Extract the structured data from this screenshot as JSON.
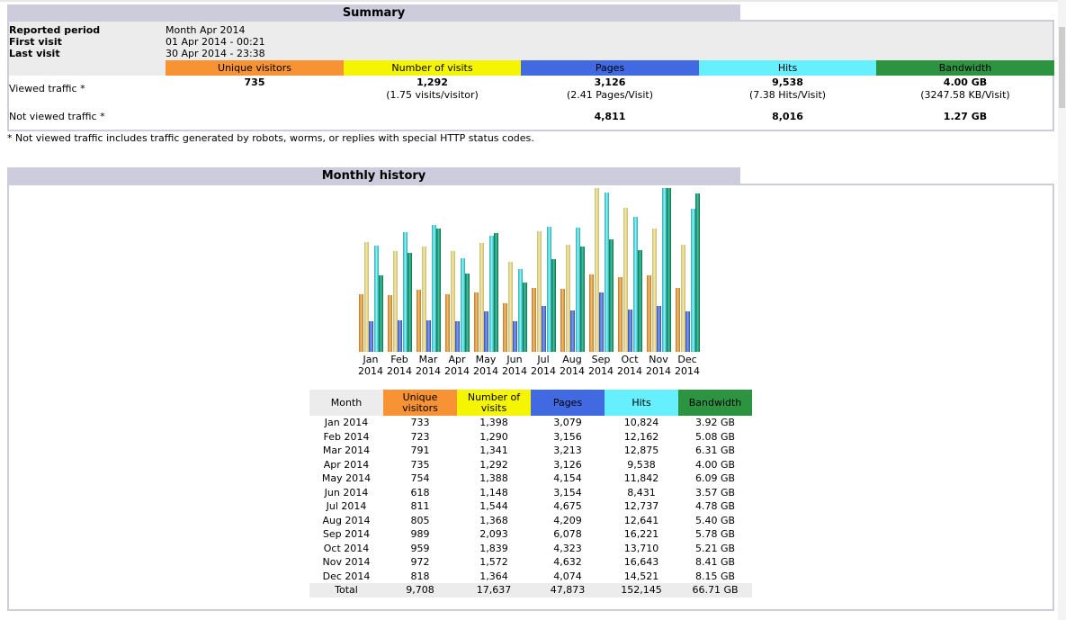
{
  "summary": {
    "title": "Summary",
    "reported_period_label": "Reported period",
    "reported_period_value": "Month Apr 2014",
    "first_visit_label": "First visit",
    "first_visit_value": "01 Apr 2014 - 00:21",
    "last_visit_label": "Last visit",
    "last_visit_value": "30 Apr 2014 - 23:38",
    "headers": {
      "unique_visitors": "Unique visitors",
      "number_of_visits": "Number of visits",
      "pages": "Pages",
      "hits": "Hits",
      "bandwidth": "Bandwidth"
    },
    "viewed_label": "Viewed traffic *",
    "viewed": {
      "unique_visitors": "735",
      "visits": "1,292",
      "visits_sub": "(1.75 visits/visitor)",
      "pages": "3,126",
      "pages_sub": "(2.41 Pages/Visit)",
      "hits": "9,538",
      "hits_sub": "(7.38 Hits/Visit)",
      "bandwidth": "4.00 GB",
      "bandwidth_sub": "(3247.58 KB/Visit)"
    },
    "not_viewed_label": "Not viewed traffic *",
    "not_viewed": {
      "pages": "4,811",
      "hits": "8,016",
      "bandwidth": "1.27 GB"
    },
    "footnote": "* Not viewed traffic includes traffic generated by robots, worms, or replies with special HTTP status codes."
  },
  "history": {
    "title": "Monthly history",
    "columns": {
      "month": "Month",
      "unique_visitors": "Unique visitors",
      "number_of_visits": "Number of visits",
      "pages": "Pages",
      "hits": "Hits",
      "bandwidth": "Bandwidth"
    },
    "rows": [
      {
        "month": "Jan 2014",
        "visitors": "733",
        "visits": "1,398",
        "pages": "3,079",
        "hits": "10,824",
        "bandwidth": "3.92 GB"
      },
      {
        "month": "Feb 2014",
        "visitors": "723",
        "visits": "1,290",
        "pages": "3,156",
        "hits": "12,162",
        "bandwidth": "5.08 GB"
      },
      {
        "month": "Mar 2014",
        "visitors": "791",
        "visits": "1,341",
        "pages": "3,213",
        "hits": "12,875",
        "bandwidth": "6.31 GB"
      },
      {
        "month": "Apr 2014",
        "visitors": "735",
        "visits": "1,292",
        "pages": "3,126",
        "hits": "9,538",
        "bandwidth": "4.00 GB"
      },
      {
        "month": "May 2014",
        "visitors": "754",
        "visits": "1,388",
        "pages": "4,154",
        "hits": "11,842",
        "bandwidth": "6.09 GB"
      },
      {
        "month": "Jun 2014",
        "visitors": "618",
        "visits": "1,148",
        "pages": "3,154",
        "hits": "8,431",
        "bandwidth": "3.57 GB"
      },
      {
        "month": "Jul 2014",
        "visitors": "811",
        "visits": "1,544",
        "pages": "4,675",
        "hits": "12,737",
        "bandwidth": "4.78 GB"
      },
      {
        "month": "Aug 2014",
        "visitors": "805",
        "visits": "1,368",
        "pages": "4,209",
        "hits": "12,641",
        "bandwidth": "5.40 GB"
      },
      {
        "month": "Sep 2014",
        "visitors": "989",
        "visits": "2,093",
        "pages": "6,078",
        "hits": "16,221",
        "bandwidth": "5.78 GB"
      },
      {
        "month": "Oct 2014",
        "visitors": "959",
        "visits": "1,839",
        "pages": "4,323",
        "hits": "13,710",
        "bandwidth": "5.21 GB"
      },
      {
        "month": "Nov 2014",
        "visitors": "972",
        "visits": "1,572",
        "pages": "4,632",
        "hits": "16,643",
        "bandwidth": "8.41 GB"
      },
      {
        "month": "Dec 2014",
        "visitors": "818",
        "visits": "1,364",
        "pages": "4,074",
        "hits": "14,521",
        "bandwidth": "8.15 GB"
      }
    ],
    "total": {
      "month": "Total",
      "visitors": "9,708",
      "visits": "17,637",
      "pages": "47,873",
      "hits": "152,145",
      "bandwidth": "66.71 GB"
    }
  },
  "colors": {
    "title_bar": "#ccccdd",
    "visitors": "#f79335",
    "visits": "#f5f500",
    "pages": "#4169e1",
    "hits": "#66f0ff",
    "bandwidth": "#2c9440",
    "month_header": "#ececec"
  },
  "chart_data": {
    "type": "bar",
    "categories": [
      "Jan 2014",
      "Feb 2014",
      "Mar 2014",
      "Apr 2014",
      "May 2014",
      "Jun 2014",
      "Jul 2014",
      "Aug 2014",
      "Sep 2014",
      "Oct 2014",
      "Nov 2014",
      "Dec 2014"
    ],
    "tick_labels": [
      {
        "month": "Jan",
        "year": "2014"
      },
      {
        "month": "Feb",
        "year": "2014"
      },
      {
        "month": "Mar",
        "year": "2014"
      },
      {
        "month": "Apr",
        "year": "2014"
      },
      {
        "month": "May",
        "year": "2014"
      },
      {
        "month": "Jun",
        "year": "2014"
      },
      {
        "month": "Jul",
        "year": "2014"
      },
      {
        "month": "Aug",
        "year": "2014"
      },
      {
        "month": "Sep",
        "year": "2014"
      },
      {
        "month": "Oct",
        "year": "2014"
      },
      {
        "month": "Nov",
        "year": "2014"
      },
      {
        "month": "Dec",
        "year": "2014"
      }
    ],
    "series": [
      {
        "name": "Unique visitors",
        "values": [
          733,
          723,
          791,
          735,
          754,
          618,
          811,
          805,
          989,
          959,
          972,
          818
        ]
      },
      {
        "name": "Number of visits",
        "values": [
          1398,
          1290,
          1341,
          1292,
          1388,
          1148,
          1544,
          1368,
          2093,
          1839,
          1572,
          1364
        ]
      },
      {
        "name": "Pages",
        "values": [
          3079,
          3156,
          3213,
          3126,
          4154,
          3154,
          4675,
          4209,
          6078,
          4323,
          4632,
          4074
        ]
      },
      {
        "name": "Hits",
        "values": [
          10824,
          12162,
          12875,
          9538,
          11842,
          8431,
          12737,
          12641,
          16221,
          13710,
          16643,
          14521
        ]
      },
      {
        "name": "Bandwidth",
        "values": [
          3.92,
          5.08,
          6.31,
          4.0,
          6.09,
          3.57,
          4.78,
          5.4,
          5.78,
          5.21,
          8.41,
          8.15
        ]
      }
    ]
  }
}
